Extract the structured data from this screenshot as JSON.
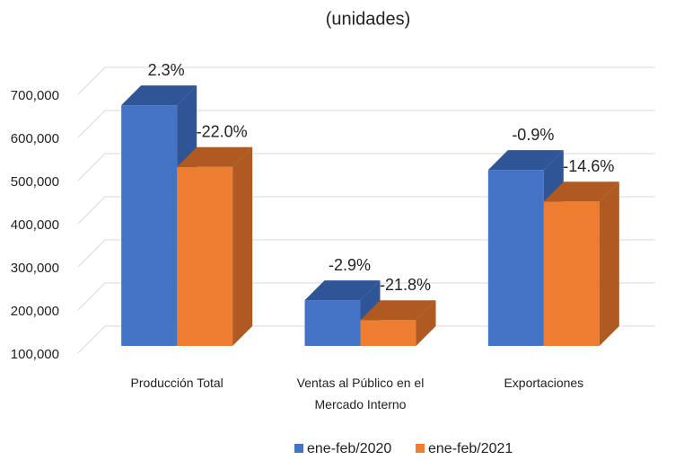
{
  "chart_data": {
    "type": "bar3d",
    "title": "(unidades)",
    "categories": [
      "Producción Total",
      "Ventas al Público en el Mercado Interno",
      "Exportaciones"
    ],
    "series": [
      {
        "name": "ene-feb/2020",
        "color": "#4472c4",
        "side_color": "#2f5597",
        "values": [
          658000,
          206000,
          508000
        ],
        "change_labels": [
          "2.3%",
          "-2.9%",
          "-0.9%"
        ]
      },
      {
        "name": "ene-feb/2021",
        "color": "#ed7d31",
        "side_color": "#ae5a21",
        "values": [
          515000,
          160000,
          435000
        ],
        "change_labels": [
          "-22.0%",
          "-21.8%",
          "-14.6%"
        ]
      }
    ],
    "ylim": [
      100000,
      800000
    ],
    "yticks": [
      {
        "value": 100000,
        "label": "100,000"
      },
      {
        "value": 200000,
        "label": "200,000"
      },
      {
        "value": 300000,
        "label": "300,000"
      },
      {
        "value": 400000,
        "label": "400,000"
      },
      {
        "value": 500000,
        "label": "500,000"
      },
      {
        "value": 600000,
        "label": "600,000"
      },
      {
        "value": 700000,
        "label": "700,000"
      }
    ],
    "grid": true,
    "legend": "bottom"
  }
}
